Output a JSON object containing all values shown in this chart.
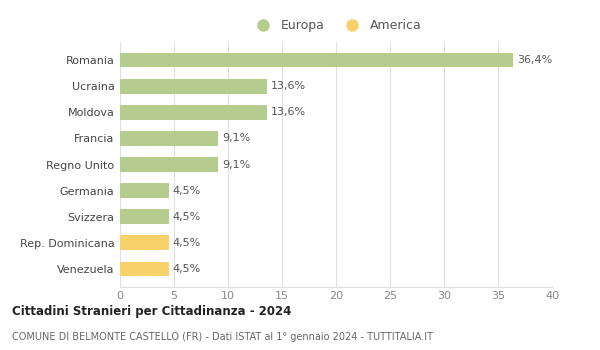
{
  "categories": [
    "Venezuela",
    "Rep. Dominicana",
    "Svizzera",
    "Germania",
    "Regno Unito",
    "Francia",
    "Moldova",
    "Ucraina",
    "Romania"
  ],
  "values": [
    4.5,
    4.5,
    4.5,
    4.5,
    9.1,
    9.1,
    13.6,
    13.6,
    36.4
  ],
  "labels": [
    "4,5%",
    "4,5%",
    "4,5%",
    "4,5%",
    "9,1%",
    "9,1%",
    "13,6%",
    "13,6%",
    "36,4%"
  ],
  "colors": [
    "#f9d16a",
    "#f9d16a",
    "#b5cc8e",
    "#b5cc8e",
    "#b5cc8e",
    "#b5cc8e",
    "#b5cc8e",
    "#b5cc8e",
    "#b5cc8e"
  ],
  "europa_color": "#b5cc8e",
  "america_color": "#f9d16a",
  "title1": "Cittadini Stranieri per Cittadinanza - 2024",
  "title2": "COMUNE DI BELMONTE CASTELLO (FR) - Dati ISTAT al 1° gennaio 2024 - TUTTITALIA.IT",
  "legend_europa": "Europa",
  "legend_america": "America",
  "xlim": [
    0,
    40
  ],
  "xticks": [
    0,
    5,
    10,
    15,
    20,
    25,
    30,
    35,
    40
  ],
  "bg_color": "#ffffff",
  "grid_color": "#e0e0e0",
  "label_fontsize": 8,
  "tick_fontsize": 8,
  "bar_height": 0.55
}
